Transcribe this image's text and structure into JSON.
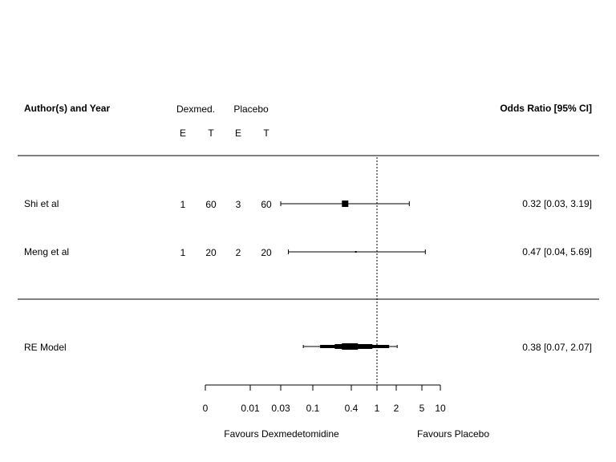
{
  "header": {
    "author_label": "Author(s) and Year",
    "group1_label": "Dexmed.",
    "group2_label": "Placebo",
    "col_e1": "E",
    "col_t1": "T",
    "col_e2": "E",
    "col_t2": "T",
    "effect_label": "Odds Ratio [95% CI]"
  },
  "colors": {
    "ink": "#000000",
    "background": "#ffffff"
  },
  "chart_data": {
    "type": "forest",
    "x_scale": "log",
    "reference_line": 1,
    "reference_line_style": "dotted",
    "xticks": [
      {
        "value": 0.003,
        "label": "0"
      },
      {
        "value": 0.01,
        "label": "0.01"
      },
      {
        "value": 0.03,
        "label": "0.03"
      },
      {
        "value": 0.1,
        "label": "0.1"
      },
      {
        "value": 0.4,
        "label": "0.4"
      },
      {
        "value": 1,
        "label": "1"
      },
      {
        "value": 2,
        "label": "2"
      },
      {
        "value": 5,
        "label": "5"
      },
      {
        "value": 10,
        "label": "10"
      }
    ],
    "xlim": [
      0.003,
      10
    ],
    "studies": [
      {
        "name": "Shi et al",
        "e1": "1",
        "t1": "60",
        "e2": "3",
        "t2": "60",
        "or": 0.32,
        "lower": 0.03,
        "upper": 3.19,
        "weight": 0.6,
        "label": "0.32 [0.03, 3.19]"
      },
      {
        "name": "Meng et al",
        "e1": "1",
        "t1": "20",
        "e2": "2",
        "t2": "20",
        "or": 0.47,
        "lower": 0.04,
        "upper": 5.69,
        "weight": 0.4,
        "label": "0.47 [0.04, 5.69]"
      }
    ],
    "summary": {
      "name": "RE Model",
      "or": 0.38,
      "lower": 0.07,
      "upper": 2.07,
      "label": "0.38 [0.07, 2.07]"
    },
    "favours_left": "Favours Dexmedetomidine",
    "favours_right": "Favours Placebo"
  }
}
